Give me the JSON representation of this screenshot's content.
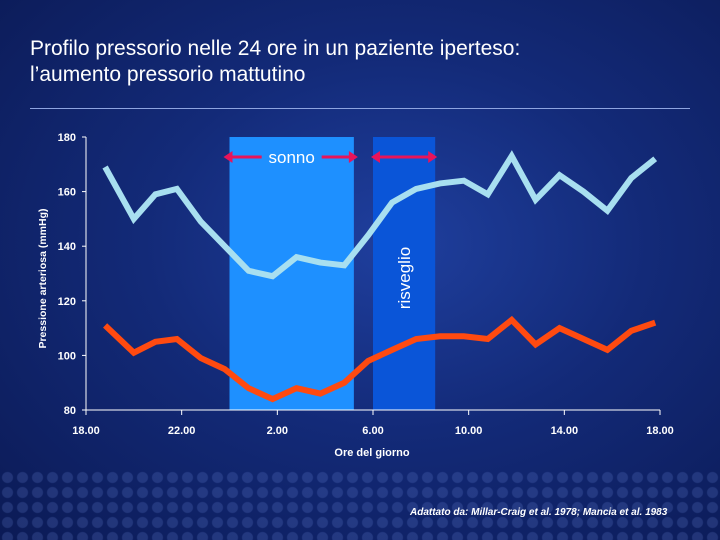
{
  "title": {
    "line1": "Profilo pressorio nelle 24 ore in un paziente iperteso:",
    "line2": "l’aumento pressorio mattutino"
  },
  "source": "Adattato da: Millar-Craig et al. 1978; Mancia et al. 1983",
  "chart_data": {
    "type": "line",
    "ylabel": "Pressione arteriosa (mmHg)",
    "xlabel": "Ore del giorno",
    "ylim": [
      80,
      180
    ],
    "yticks": [
      80,
      100,
      120,
      140,
      160,
      180
    ],
    "xlim": [
      18,
      42
    ],
    "xticks": [
      {
        "value": 18,
        "label": "18.00"
      },
      {
        "value": 22,
        "label": "22.00"
      },
      {
        "value": 26,
        "label": "2.00"
      },
      {
        "value": 30,
        "label": "6.00"
      },
      {
        "value": 34,
        "label": "10.00"
      },
      {
        "value": 38,
        "label": "14.00"
      },
      {
        "value": 42,
        "label": "18.00"
      }
    ],
    "bands": [
      {
        "label": "sonno",
        "from": 24,
        "to": 29.2,
        "color": "#1e90ff"
      },
      {
        "label": "risveglio",
        "from": 30,
        "to": 32.6,
        "color": "#0a55d8"
      }
    ],
    "series": [
      {
        "color": "#a8dff0",
        "x": [
          18.8,
          20,
          20.9,
          21.8,
          22.8,
          23.8,
          24.8,
          25.8,
          26.8,
          27.8,
          28.8,
          29.8,
          30.8,
          31.8,
          32.8,
          33.8,
          34.8,
          35.8,
          36.8,
          37.8,
          38.8,
          39.8,
          40.8,
          41.8
        ],
        "y": [
          169,
          150,
          159,
          161,
          149,
          140,
          131,
          129,
          136,
          134,
          133,
          144,
          156,
          161,
          163,
          164,
          159,
          173,
          157,
          166,
          160,
          153,
          165,
          172
        ]
      },
      {
        "color": "#ff4a10",
        "x": [
          18.8,
          20,
          20.9,
          21.8,
          22.8,
          23.8,
          24.8,
          25.8,
          26.8,
          27.8,
          28.8,
          29.8,
          30.8,
          31.8,
          32.8,
          33.8,
          34.8,
          35.8,
          36.8,
          37.8,
          38.8,
          39.8,
          40.8,
          41.8
        ],
        "y": [
          111,
          101,
          105,
          106,
          99,
          95,
          88,
          84,
          88,
          86,
          90,
          98,
          102,
          106,
          107,
          107,
          106,
          113,
          104,
          110,
          106,
          102,
          109,
          112
        ]
      }
    ]
  }
}
